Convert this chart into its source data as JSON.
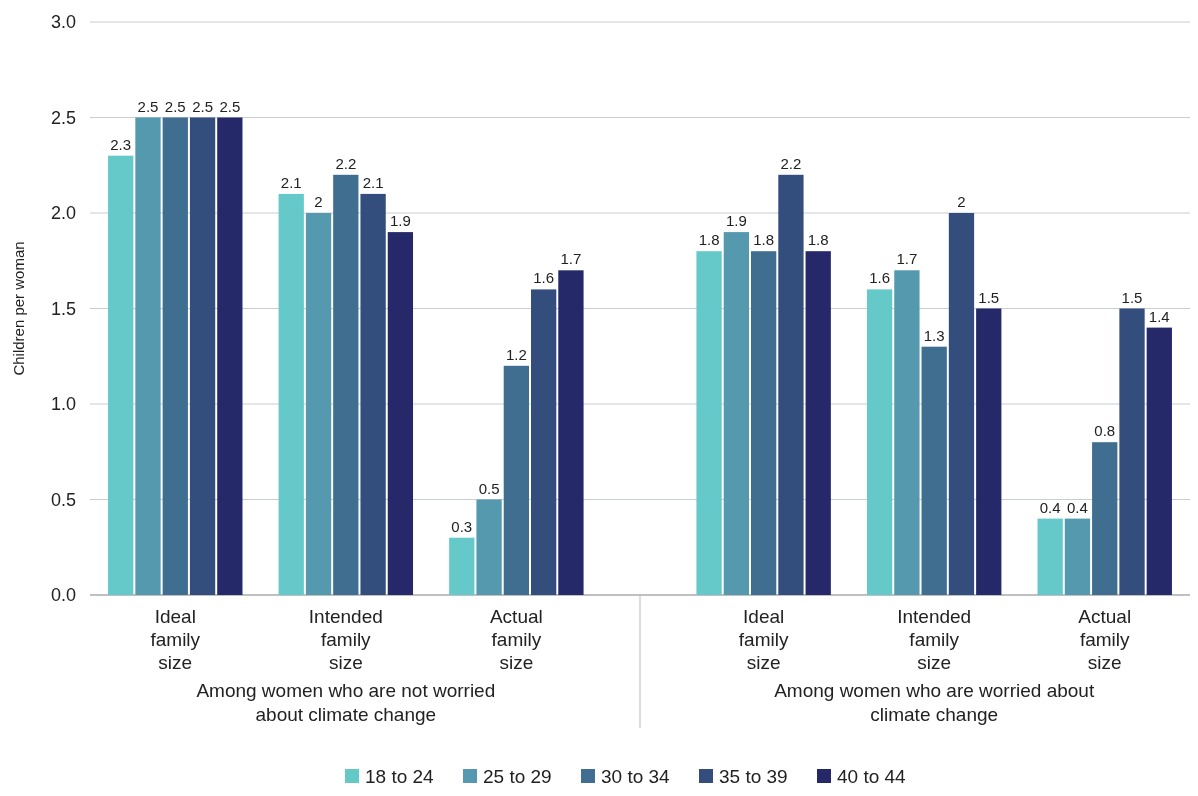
{
  "chart_data": {
    "type": "bar",
    "ylabel": "Children per woman",
    "categories": [
      "Ideal family size",
      "Intended family size",
      "Actual family size",
      "Ideal family size",
      "Intended family size",
      "Actual family size"
    ],
    "series": [
      {
        "name": "18 to 24",
        "color": "#66c9c9",
        "values": [
          2.3,
          2.1,
          0.3,
          1.8,
          1.6,
          0.4
        ]
      },
      {
        "name": "25 to 29",
        "color": "#5499ad",
        "values": [
          2.5,
          2,
          0.5,
          1.9,
          1.7,
          0.4
        ]
      },
      {
        "name": "30 to 34",
        "color": "#3f6e91",
        "values": [
          2.5,
          2.2,
          1.2,
          1.8,
          1.3,
          0.8
        ]
      },
      {
        "name": "35 to 39",
        "color": "#334e7c",
        "values": [
          2.5,
          2.1,
          1.6,
          2.2,
          2,
          1.5
        ]
      },
      {
        "name": "40 to 44",
        "color": "#25296a",
        "values": [
          2.5,
          1.9,
          1.7,
          1.8,
          1.5,
          1.4
        ]
      }
    ],
    "ylim": [
      0,
      3
    ],
    "yticks": [
      {
        "value": 0,
        "label": "0.0"
      },
      {
        "value": 0.5,
        "label": "0.5"
      },
      {
        "value": 1,
        "label": "1.0"
      },
      {
        "value": 1.5,
        "label": "1.5"
      },
      {
        "value": 2,
        "label": "2.0"
      },
      {
        "value": 2.5,
        "label": "2.5"
      },
      {
        "value": 3,
        "label": "3.0"
      }
    ],
    "grid": "y",
    "legend": "bottom",
    "data_labels": true,
    "annotations": [
      "Among women who are not worried about climate change",
      "Among women who are worried about climate change"
    ]
  }
}
